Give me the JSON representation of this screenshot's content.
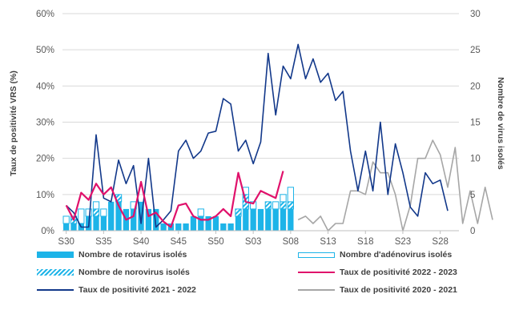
{
  "chart_data": {
    "type": "bar+line",
    "y_left": {
      "label": "Taux de positivité VRS (%)",
      "min": 0,
      "max": 60,
      "ticks": [
        "0%",
        "10%",
        "20%",
        "30%",
        "40%",
        "50%",
        "60%"
      ]
    },
    "y_right": {
      "label": "Nombre de virus isolés",
      "min": 0,
      "max": 30,
      "ticks": [
        "0",
        "5",
        "10",
        "15",
        "20",
        "25",
        "30"
      ]
    },
    "x_tick_labels": [
      "S30",
      "S35",
      "S40",
      "S45",
      "S50",
      "S03",
      "S08",
      "S13",
      "S18",
      "S23",
      "S28"
    ],
    "weeks_count": 53,
    "bars": {
      "week_index": [
        0,
        1,
        2,
        3,
        4,
        5,
        6,
        7,
        8,
        9,
        10,
        11,
        12,
        13,
        14,
        15,
        16,
        17,
        18,
        19,
        20,
        21,
        22,
        23,
        24,
        25,
        26,
        27,
        28,
        29,
        30
      ],
      "rotavirus": [
        1,
        1,
        1,
        2,
        2,
        2,
        4,
        4,
        3,
        3,
        4,
        3,
        3,
        1,
        1,
        1,
        1,
        2,
        2,
        2,
        2,
        1,
        1,
        2,
        3,
        3,
        3,
        3,
        3,
        3,
        3
      ],
      "adenovirus": [
        1,
        0,
        2,
        1,
        1,
        1,
        0,
        0,
        0,
        1,
        0,
        0,
        0,
        0,
        0,
        0,
        0,
        0,
        1,
        0,
        0,
        0,
        0,
        0,
        1,
        1,
        0,
        0,
        1,
        1,
        2
      ],
      "norovirus": [
        0,
        1,
        0,
        0,
        1,
        0,
        0,
        1,
        0,
        0,
        0,
        0,
        0,
        0,
        0,
        0,
        0,
        0,
        0,
        0,
        0,
        0,
        0,
        1,
        2,
        0,
        0,
        1,
        0,
        1,
        1
      ]
    },
    "series": [
      {
        "name": "Taux de positivité 2022 - 2023",
        "color": "#e0116b",
        "axis": "left",
        "start": 0,
        "values": [
          7,
          3,
          10.5,
          8.5,
          13,
          10,
          12,
          7,
          3,
          4,
          13.5,
          4,
          5,
          2.5,
          1,
          7,
          7.5,
          4,
          3,
          3,
          4,
          6,
          4,
          16,
          8,
          7.5,
          11,
          10,
          9,
          16.5
        ]
      },
      {
        "name": "Taux de positivité 2021 - 2022",
        "color": "#12388a",
        "axis": "left",
        "start": 0,
        "values": [
          7,
          5,
          1,
          1,
          26.5,
          9,
          8,
          19.5,
          13,
          18,
          2,
          20,
          1,
          3,
          5.5,
          22,
          25,
          20,
          22,
          27,
          27.5,
          36.5,
          35,
          22,
          25,
          18.5,
          24.5,
          49,
          32,
          45.5,
          42,
          51.5,
          42,
          47.5,
          41,
          43.5,
          36,
          38.5,
          22,
          11,
          22,
          11,
          30,
          10,
          24,
          16,
          6.5,
          4,
          16,
          13,
          14,
          5.5
        ]
      },
      {
        "name": "Taux de positivité 2020 - 2021",
        "color": "#a6a6a6",
        "axis": "right",
        "start": 31,
        "values": [
          1.5,
          2,
          1,
          2,
          0,
          1,
          1,
          5.5,
          5.5,
          5,
          9.5,
          8,
          8,
          5,
          0,
          3.5,
          10,
          10,
          12.5,
          10.5,
          6,
          11.5,
          1,
          5.5,
          1,
          6,
          1.5
        ]
      }
    ]
  },
  "legend": [
    {
      "label": "Nombre de rotavirus isolés"
    },
    {
      "label": "Nombre d'adénovirus isolés"
    },
    {
      "label": "Nombre de norovirus isolés"
    },
    {
      "label": "Taux de positivité 2022 - 2023"
    },
    {
      "label": "Taux de positivité 2021 - 2022"
    },
    {
      "label": "Taux de positivité 2020 - 2021"
    }
  ]
}
